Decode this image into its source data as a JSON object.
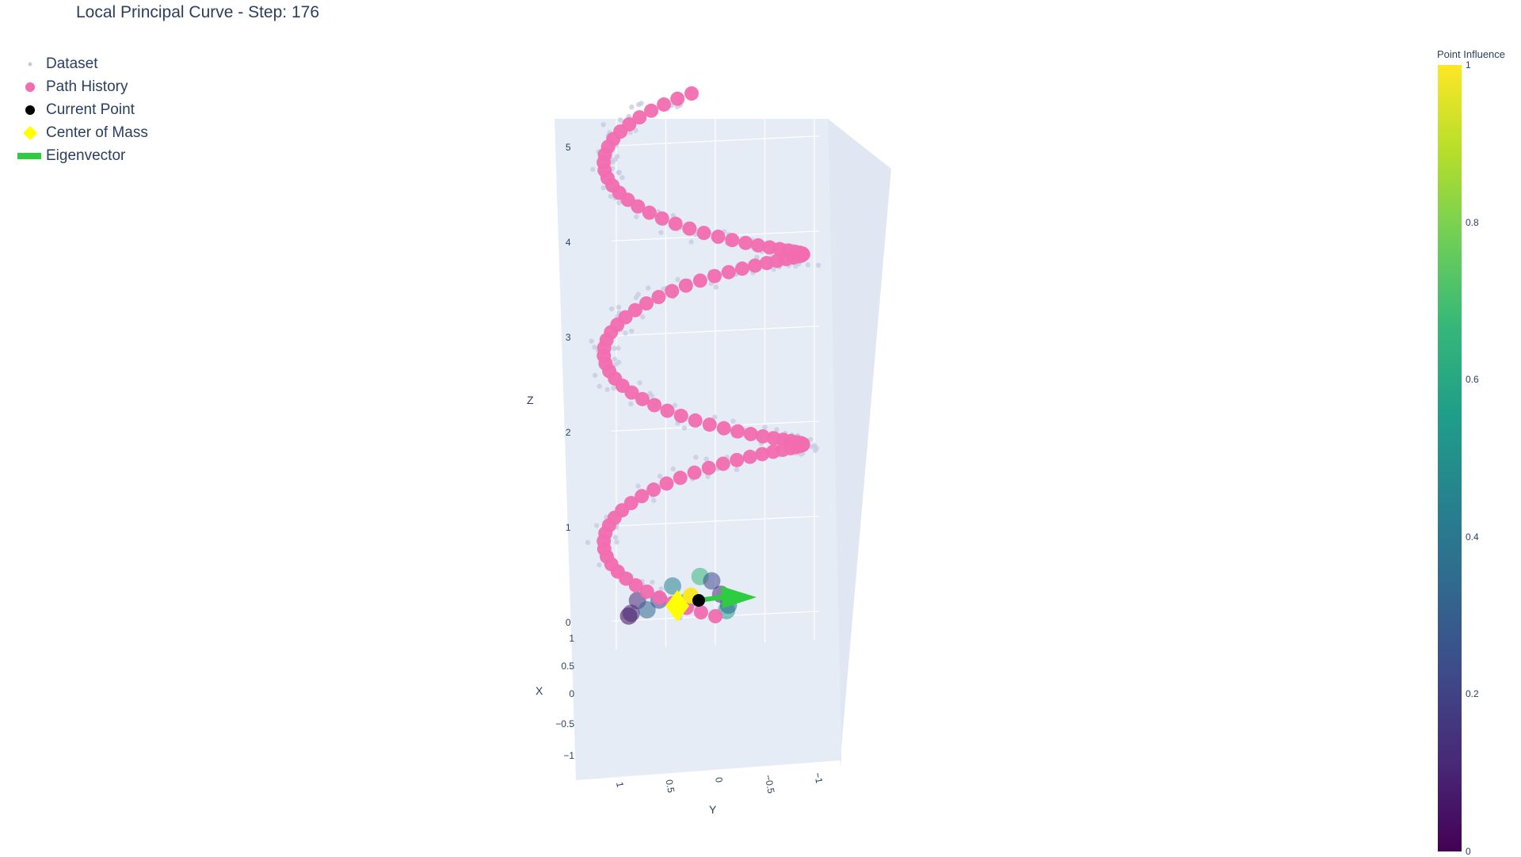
{
  "chart_data": {
    "type": "scatter",
    "title": "Local Principal Curve - Step: 176",
    "axes": {
      "x": {
        "label": "X",
        "ticks": [
          "1",
          "0.5",
          "0",
          "−0.5",
          "−1"
        ]
      },
      "y": {
        "label": "Y",
        "ticks": [
          "1",
          "0.5",
          "0",
          "−0.5",
          "−1"
        ]
      },
      "z": {
        "label": "Z",
        "ticks": [
          "5",
          "4",
          "3",
          "2",
          "1",
          "0"
        ]
      }
    },
    "legend": {
      "placement": "top-left",
      "entries": [
        {
          "name": "Dataset",
          "color": "#c8cce2",
          "symbol": "dot-small"
        },
        {
          "name": "Path History",
          "color": "#f26db0",
          "symbol": "circle"
        },
        {
          "name": "Current Point",
          "color": "#000000",
          "symbol": "circle"
        },
        {
          "name": "Center of Mass",
          "color": "#ffff00",
          "symbol": "diamond"
        },
        {
          "name": "Eigenvector",
          "color": "#2ecc40",
          "symbol": "line"
        }
      ]
    },
    "colorbar": {
      "title": "Point Influence",
      "range": [
        0,
        1
      ],
      "ticks": [
        "1",
        "0.8",
        "0.6",
        "0.4",
        "0.2",
        "0"
      ],
      "colorscale": "viridis"
    },
    "current_point": {
      "x": 0.0,
      "y": 0.0,
      "z": 0.0
    },
    "path_history_sampled_z": [
      0.0,
      0.5,
      1.0,
      1.5,
      2.0,
      2.5,
      3.0,
      3.5,
      4.0,
      4.5,
      5.0
    ],
    "helix": {
      "radius": 1.0,
      "z_range": [
        0,
        5
      ],
      "turns": 2.5
    }
  }
}
